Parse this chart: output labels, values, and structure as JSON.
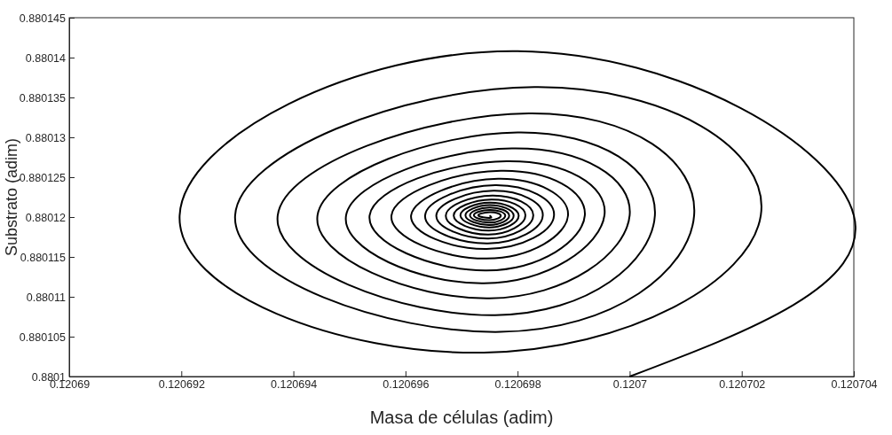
{
  "chart_data": {
    "type": "line",
    "xlabel": "Masa de células (adim)",
    "ylabel": "Substrato (adim)",
    "xlim": [
      0.12069,
      0.120704
    ],
    "xticks": [
      0.12069,
      0.120692,
      0.120694,
      0.120696,
      0.120698,
      0.1207,
      0.120702,
      0.120704
    ],
    "ylim": [
      0.8801,
      0.880145
    ],
    "yticks": [
      0.8801,
      0.880105,
      0.88011,
      0.880115,
      0.88012,
      0.880125,
      0.88013,
      0.880135,
      0.88014,
      0.880145
    ],
    "grid": false,
    "marker": "none",
    "line_style": "solid",
    "series": [
      {
        "color": "#000000",
        "x": [
          0.1207,
          0.120704,
          0.120698,
          0.12069197,
          0.1206974,
          0.12070234,
          0.1206983,
          0.12069296,
          0.1206977,
          0.12070115,
          0.1206982,
          0.12069372,
          0.1206976,
          0.12070045,
          0.120698,
          0.12069443,
          0.1206975,
          0.1207,
          0.1206979,
          0.12069494,
          0.1206974,
          0.12069955,
          0.1206978,
          0.12069536,
          0.12069745,
          0.1206992,
          0.1206977,
          0.12069575,
          0.12069745,
          0.1206989,
          0.12069765,
          0.1206961,
          0.12069745,
          0.12069865,
          0.1206976,
          0.12069635,
          0.12069747,
          0.12069845,
          0.12069757,
          0.12069655,
          0.12069748,
          0.12069828,
          0.12069755,
          0.12069672,
          0.12069748,
          0.12069814,
          0.12069753,
          0.12069686,
          0.12069749,
          0.12069802,
          0.1206975,
          0.12069698,
          0.1206975,
          0.12069793,
          0.1206975,
          0.12069707,
          0.1206975,
          0.12069785,
          0.1206975,
          0.12069715,
          0.1206975,
          0.12069778,
          0.1206975,
          0.12069722,
          0.1206975,
          0.1206977,
          0.1206975,
          0.1206973,
          0.1206975,
          0.1206975
        ],
        "values": [
          0.8801,
          0.8801202,
          0.8801408,
          0.8801202,
          0.880103,
          0.8801202,
          0.8801363,
          0.8801202,
          0.8801056,
          0.8801202,
          0.880133,
          0.8801202,
          0.8801077,
          0.8801202,
          0.8801306,
          0.8801202,
          0.8801098,
          0.8801202,
          0.8801286,
          0.8801202,
          0.8801117,
          0.8801202,
          0.880127,
          0.8801202,
          0.8801133,
          0.8801202,
          0.8801258,
          0.8801202,
          0.8801148,
          0.8801202,
          0.8801248,
          0.8801202,
          0.880116,
          0.8801202,
          0.880124,
          0.8801202,
          0.8801167,
          0.8801202,
          0.8801233,
          0.8801202,
          0.8801173,
          0.8801202,
          0.8801227,
          0.8801202,
          0.8801178,
          0.8801202,
          0.8801222,
          0.8801202,
          0.8801183,
          0.8801202,
          0.8801218,
          0.8801202,
          0.8801187,
          0.8801202,
          0.8801215,
          0.8801202,
          0.880119,
          0.8801202,
          0.8801212,
          0.8801202,
          0.8801193,
          0.8801202,
          0.8801209,
          0.8801202,
          0.8801196,
          0.8801202,
          0.8801206,
          0.8801202,
          0.8801199,
          0.8801202
        ]
      }
    ]
  }
}
